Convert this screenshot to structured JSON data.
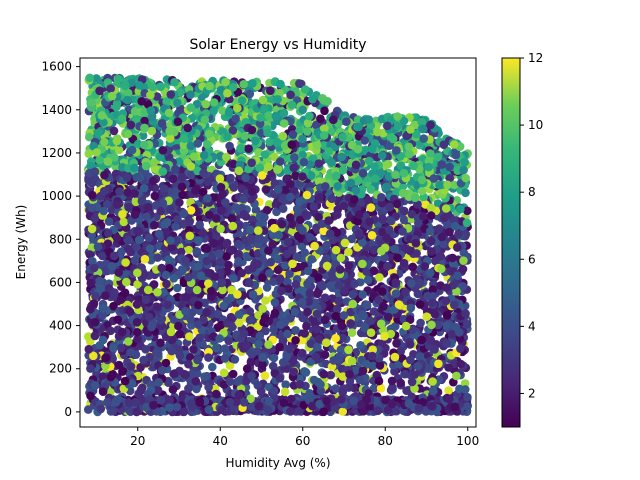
{
  "chart_data": {
    "type": "scatter",
    "title": "Solar Energy vs Humidity",
    "xlabel": "Humidity Avg (%)",
    "ylabel": "Energy (Wh)",
    "xlim": [
      6,
      102
    ],
    "ylim": [
      -70,
      1640
    ],
    "x_ticks": [
      20,
      40,
      60,
      80,
      100
    ],
    "y_ticks": [
      0,
      200,
      400,
      600,
      800,
      1000,
      1200,
      1400,
      1600
    ],
    "colorbar": {
      "min": 1,
      "max": 12,
      "ticks": [
        2,
        4,
        6,
        8,
        10,
        12
      ],
      "colormap": "viridis"
    },
    "grid": false,
    "legend": "none",
    "point_cloud": {
      "x_range": [
        8,
        100
      ],
      "y_range": [
        0,
        1560
      ],
      "upper_envelope": [
        [
          8,
          1550
        ],
        [
          60,
          1530
        ],
        [
          70,
          1380
        ],
        [
          80,
          1370
        ],
        [
          90,
          1370
        ],
        [
          100,
          1200
        ]
      ],
      "color_trend": "high color values (teal/yellow-green) concentrated near the upper envelope; low color values (dark purple) dominate lower energies"
    }
  }
}
